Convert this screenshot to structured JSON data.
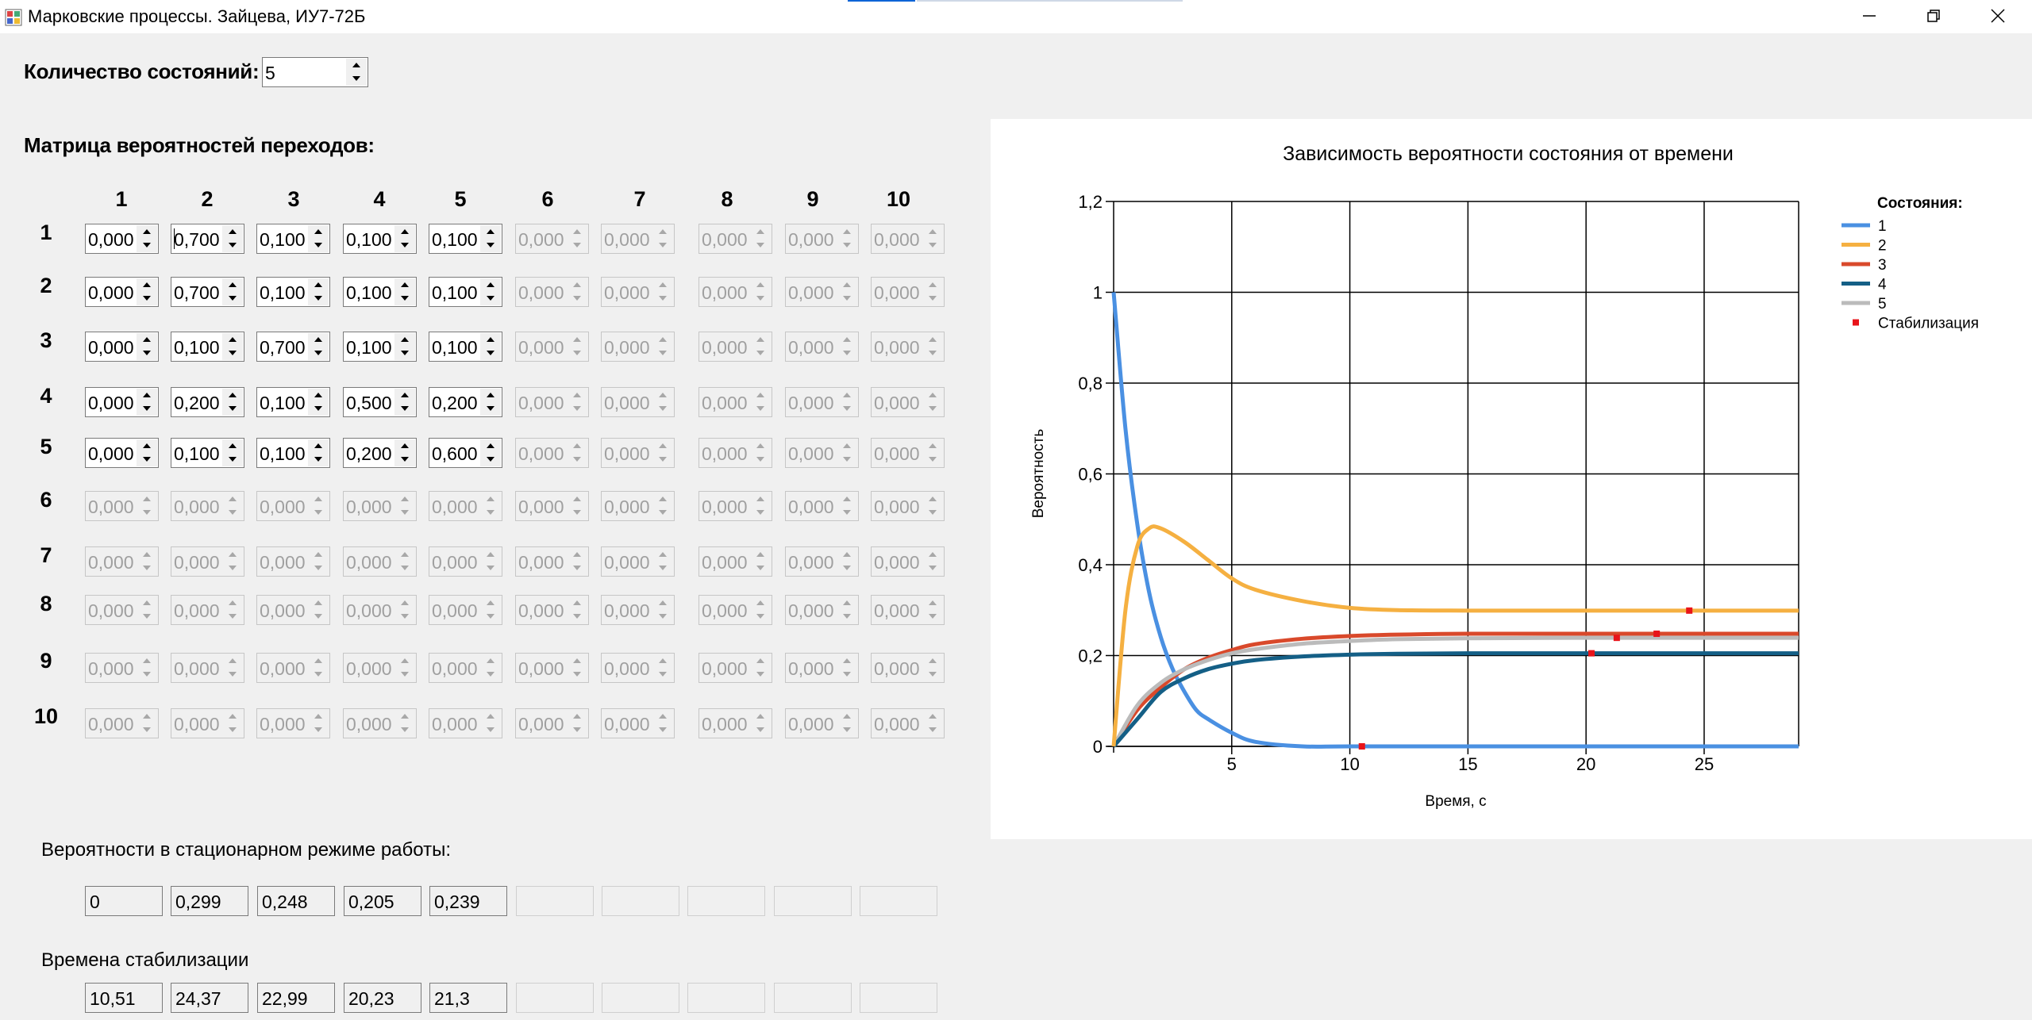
{
  "window": {
    "title": "Марковские процессы. Зайцева, ИУ7-72Б",
    "controls": [
      "minimize-icon",
      "restore-icon",
      "close-icon"
    ]
  },
  "states_count": {
    "label": "Количество состояний:",
    "value": "5"
  },
  "matrix": {
    "label": "Матрица вероятностей переходов:",
    "col_headers": [
      "1",
      "2",
      "3",
      "4",
      "5",
      "6",
      "7",
      "8",
      "9",
      "10"
    ],
    "row_headers": [
      "1",
      "2",
      "3",
      "4",
      "5",
      "6",
      "7",
      "8",
      "9",
      "10"
    ],
    "active_size": 5,
    "rows": [
      [
        "0,000",
        "0,700",
        "0,100",
        "0,100",
        "0,100",
        "0,000",
        "0,000",
        "0,000",
        "0,000",
        "0,000"
      ],
      [
        "0,000",
        "0,700",
        "0,100",
        "0,100",
        "0,100",
        "0,000",
        "0,000",
        "0,000",
        "0,000",
        "0,000"
      ],
      [
        "0,000",
        "0,100",
        "0,700",
        "0,100",
        "0,100",
        "0,000",
        "0,000",
        "0,000",
        "0,000",
        "0,000"
      ],
      [
        "0,000",
        "0,200",
        "0,100",
        "0,500",
        "0,200",
        "0,000",
        "0,000",
        "0,000",
        "0,000",
        "0,000"
      ],
      [
        "0,000",
        "0,100",
        "0,100",
        "0,200",
        "0,600",
        "0,000",
        "0,000",
        "0,000",
        "0,000",
        "0,000"
      ],
      [
        "0,000",
        "0,000",
        "0,000",
        "0,000",
        "0,000",
        "0,000",
        "0,000",
        "0,000",
        "0,000",
        "0,000"
      ],
      [
        "0,000",
        "0,000",
        "0,000",
        "0,000",
        "0,000",
        "0,000",
        "0,000",
        "0,000",
        "0,000",
        "0,000"
      ],
      [
        "0,000",
        "0,000",
        "0,000",
        "0,000",
        "0,000",
        "0,000",
        "0,000",
        "0,000",
        "0,000",
        "0,000"
      ],
      [
        "0,000",
        "0,000",
        "0,000",
        "0,000",
        "0,000",
        "0,000",
        "0,000",
        "0,000",
        "0,000",
        "0,000"
      ],
      [
        "0,000",
        "0,000",
        "0,000",
        "0,000",
        "0,000",
        "0,000",
        "0,000",
        "0,000",
        "0,000",
        "0,000"
      ]
    ]
  },
  "stationary": {
    "label": "Вероятности в стационарном режиме работы:",
    "values": [
      "0",
      "0,299",
      "0,248",
      "0,205",
      "0,239",
      "",
      "",
      "",
      "",
      ""
    ]
  },
  "stabilization": {
    "label": "Времена стабилизации",
    "values": [
      "10,51",
      "24,37",
      "22,99",
      "20,23",
      "21,3",
      "",
      "",
      "",
      "",
      ""
    ]
  },
  "chart_data": {
    "type": "line",
    "title": "Зависимость вероятности состояния от времени",
    "xlabel": "Время, с",
    "ylabel": "Вероятность",
    "xlim": [
      0,
      29
    ],
    "ylim": [
      0,
      1.2
    ],
    "x_ticks": [
      "5",
      "10",
      "15",
      "20",
      "25"
    ],
    "y_ticks": [
      "0",
      "0,2",
      "0,4",
      "0,6",
      "0,8",
      "1",
      "1,2"
    ],
    "grid": true,
    "legend_title": "Состояния:",
    "legend_position": "top-right",
    "series": [
      {
        "name": "1",
        "color": "#4a90e2",
        "x": [
          0,
          0.5,
          1,
          1.5,
          2,
          2.5,
          3,
          3.5,
          4,
          5,
          6,
          8,
          10,
          15,
          20,
          25,
          29
        ],
        "y": [
          1,
          0.7,
          0.49,
          0.34,
          0.24,
          0.17,
          0.12,
          0.08,
          0.06,
          0.03,
          0.01,
          0.0,
          0.0,
          0.0,
          0.0,
          0.0,
          0.0
        ]
      },
      {
        "name": "2",
        "color": "#f5b041",
        "x": [
          0,
          0.5,
          1,
          1.5,
          2,
          3,
          4,
          5,
          6,
          8,
          10,
          12,
          15,
          20,
          25,
          29
        ],
        "y": [
          0,
          0.3,
          0.44,
          0.48,
          0.48,
          0.45,
          0.41,
          0.37,
          0.345,
          0.32,
          0.305,
          0.3,
          0.299,
          0.299,
          0.299,
          0.299
        ]
      },
      {
        "name": "3",
        "color": "#d9492b",
        "x": [
          0,
          1,
          2,
          3,
          4,
          5,
          6,
          8,
          10,
          12,
          15,
          20,
          25,
          29
        ],
        "y": [
          0,
          0.08,
          0.13,
          0.17,
          0.195,
          0.212,
          0.225,
          0.237,
          0.243,
          0.246,
          0.248,
          0.248,
          0.248,
          0.248
        ]
      },
      {
        "name": "4",
        "color": "#145f86",
        "x": [
          0,
          1,
          2,
          3,
          4,
          5,
          6,
          8,
          10,
          12,
          15,
          20,
          25,
          29
        ],
        "y": [
          0,
          0.06,
          0.12,
          0.15,
          0.17,
          0.182,
          0.19,
          0.198,
          0.202,
          0.204,
          0.205,
          0.205,
          0.205,
          0.205
        ]
      },
      {
        "name": "5",
        "color": "#bbbbbb",
        "x": [
          0,
          1,
          2,
          3,
          4,
          5,
          6,
          8,
          10,
          12,
          15,
          20,
          25,
          29
        ],
        "y": [
          0,
          0.09,
          0.14,
          0.17,
          0.19,
          0.205,
          0.214,
          0.226,
          0.232,
          0.236,
          0.238,
          0.239,
          0.239,
          0.239
        ]
      }
    ],
    "stabilization_points": {
      "name": "Стабилизация",
      "color": "#e8141a",
      "x": [
        10.51,
        24.37,
        22.99,
        20.23,
        21.3
      ],
      "y": [
        0,
        0.299,
        0.248,
        0.205,
        0.239
      ]
    }
  }
}
